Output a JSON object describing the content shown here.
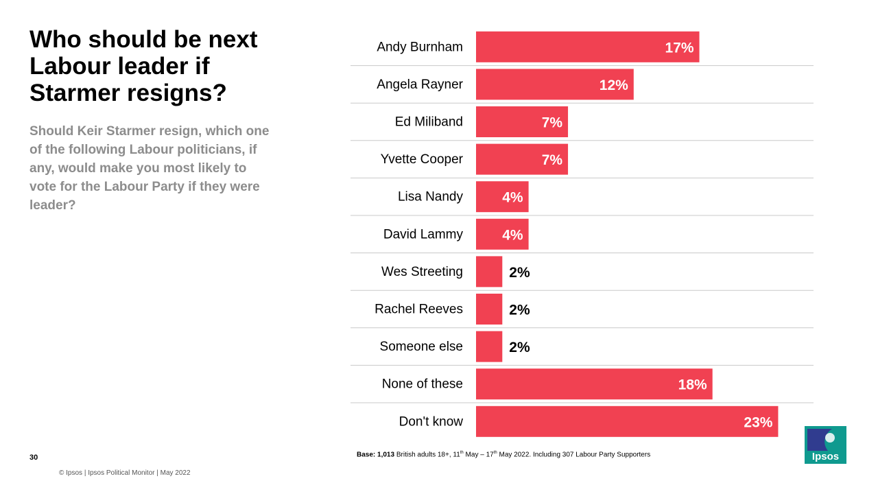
{
  "title": "Who should be next Labour leader if Starmer resigns?",
  "subtitle": "Should Keir Starmer resign, which one of the following  Labour politicians,  if any, would make you most likely to vote for the Labour Party if they were leader?",
  "page_number": "30",
  "footer": "© Ipsos | Ipsos  Political Monitor | May 2022",
  "base_note": {
    "label": "Base:",
    "count": "1,013",
    "text1": " British adults 18+, 11",
    "sup1": "th",
    "text2": " May –  17",
    "sup2": "th",
    "text3": " May 2022. Including 307 Labour Party Supporters"
  },
  "logo": {
    "text": "Ipsos",
    "color": "#0f9a8f",
    "accent": "#303c8f"
  },
  "colors": {
    "bar": "#f14152",
    "divider": "#c8c8c8",
    "label_inside": "#ffffff",
    "label_outside": "#000000"
  },
  "chart_data": {
    "type": "bar",
    "orientation": "horizontal",
    "categories": [
      "Andy Burnham",
      "Angela Rayner",
      "Ed Miliband",
      "Yvette Cooper",
      "Lisa Nandy",
      "David Lammy",
      "Wes Streeting",
      "Rachel Reeves",
      "Someone else",
      "None of these",
      "Don't know"
    ],
    "values": [
      17,
      12,
      7,
      7,
      4,
      4,
      2,
      2,
      2,
      18,
      23
    ],
    "value_labels": [
      "17%",
      "12%",
      "7%",
      "7%",
      "4%",
      "4%",
      "2%",
      "2%",
      "2%",
      "18%",
      "23%"
    ],
    "unit": "%",
    "xlim": [
      0,
      25
    ],
    "grid": false
  }
}
